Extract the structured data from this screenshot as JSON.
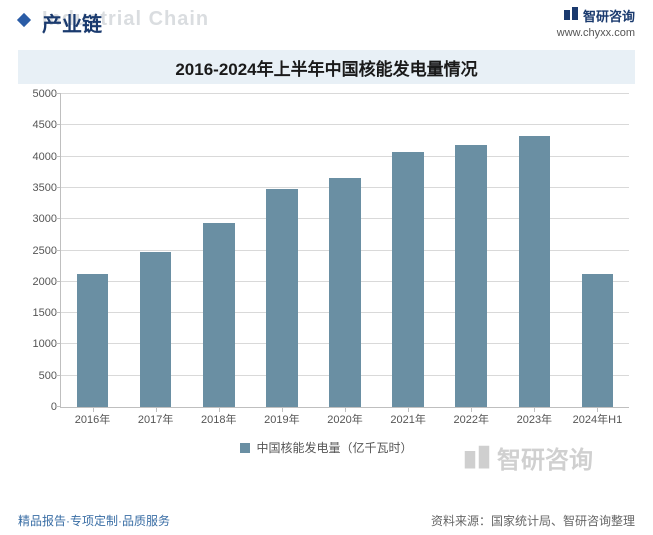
{
  "header": {
    "title_cn": "产业链",
    "title_en": "Industrial Chain",
    "title_color": "#1a3a6e",
    "logo_text": "智研咨询",
    "logo_color": "#1a3a6e",
    "url": "www.chyxx.com"
  },
  "chart": {
    "type": "bar",
    "title": "2016-2024年上半年中国核能发电量情况",
    "title_bg": "#e8f0f6",
    "categories": [
      "2016年",
      "2017年",
      "2018年",
      "2019年",
      "2020年",
      "2021年",
      "2022年",
      "2023年",
      "2024年H1"
    ],
    "values": [
      2130,
      2480,
      2940,
      3480,
      3660,
      4070,
      4180,
      4330,
      2120
    ],
    "bar_color": "#6a8fa3",
    "ylim": [
      0,
      5000
    ],
    "ytick_step": 500,
    "y_ticks": [
      0,
      500,
      1000,
      1500,
      2000,
      2500,
      3000,
      3500,
      4000,
      4500,
      5000
    ],
    "grid_color": "#d9d9d9",
    "axis_color": "#bfbfbf",
    "background_color": "#ffffff",
    "bar_width_ratio": 0.5,
    "tick_label_fontsize": 11,
    "title_fontsize": 17,
    "legend_label": "中国核能发电量（亿千瓦时）",
    "legend_swatch_color": "#6a8fa3"
  },
  "watermark": {
    "text": "智研咨询",
    "color_rgba": "rgba(120,120,120,0.35)"
  },
  "footer": {
    "left": "精品报告·专项定制·品质服务",
    "left_color": "#3a6ea5",
    "right": "资料来源：国家统计局、智研咨询整理",
    "right_color": "#666666"
  }
}
